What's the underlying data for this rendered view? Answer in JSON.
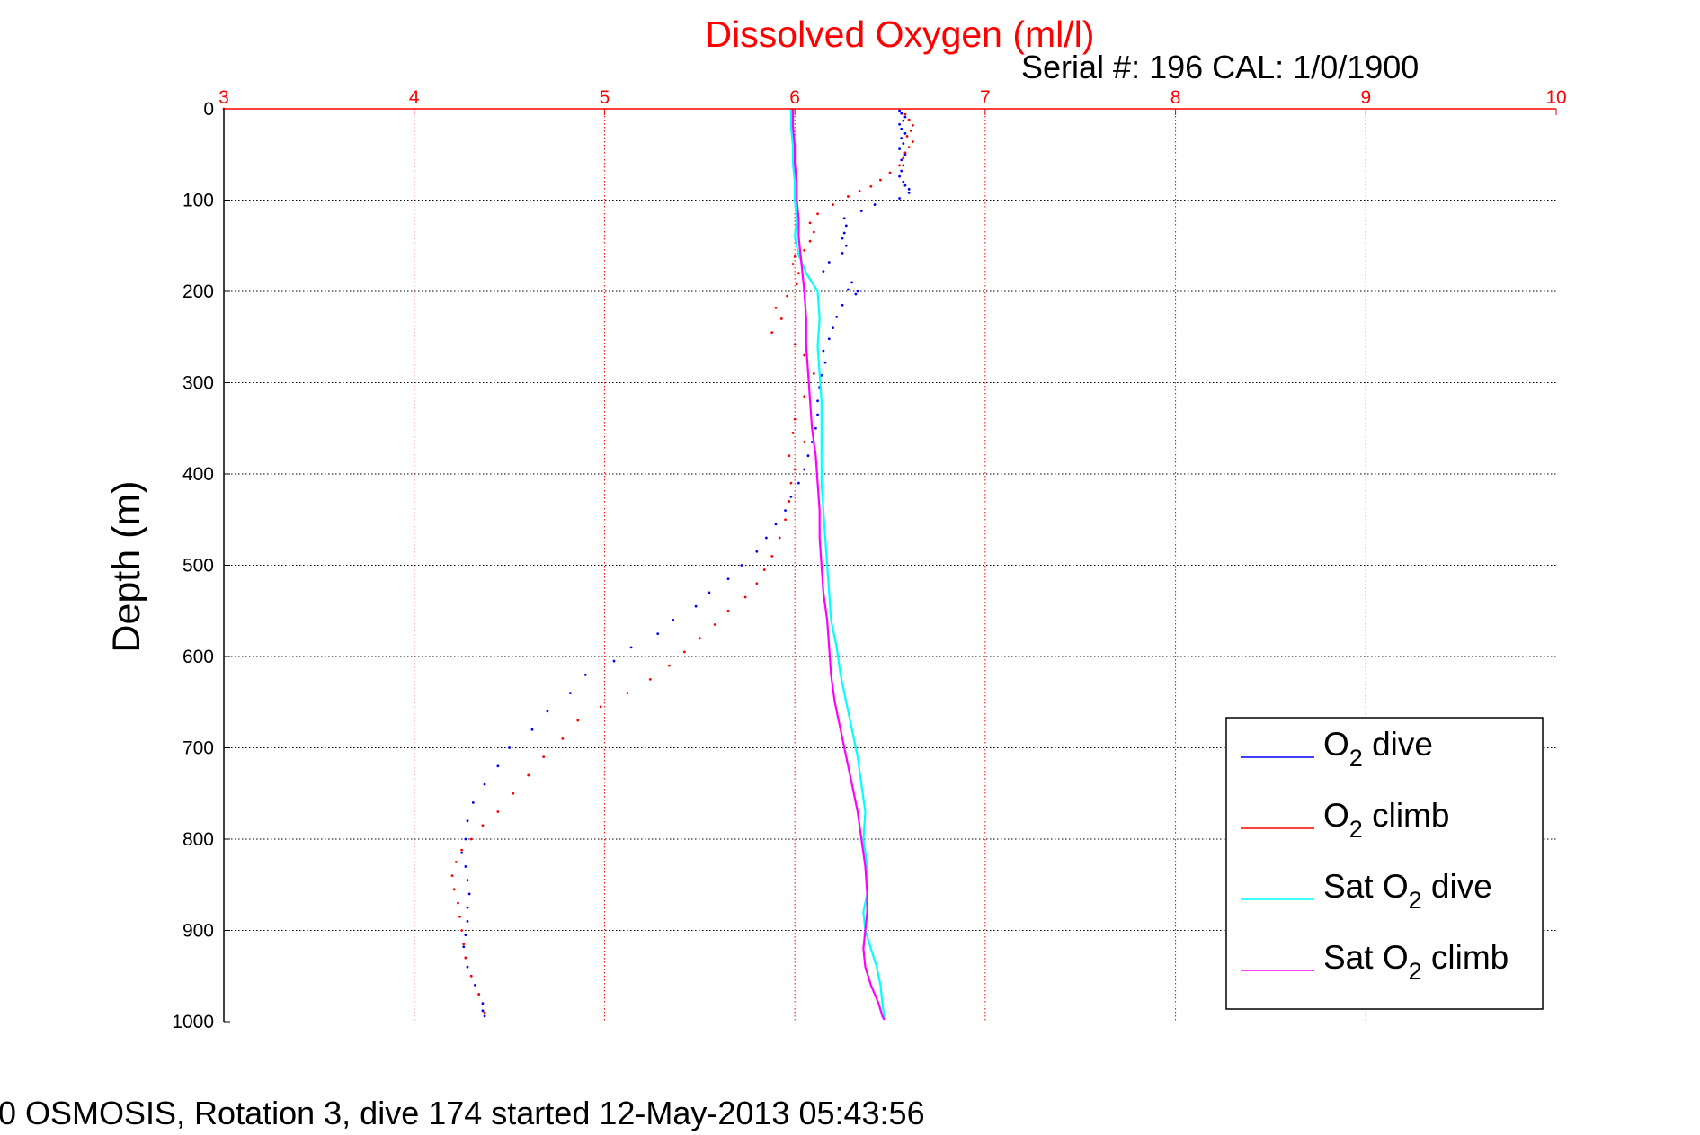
{
  "chart_data": {
    "type": "scatter",
    "title": "Dissolved Oxygen (ml/l)",
    "subtitle": "Serial #: 196  CAL: 1/0/1900",
    "caption": "0 OSMOSIS, Rotation 3, dive 174 started 12-May-2013 05:43:56",
    "xlabel": "",
    "ylabel": "Depth (m)",
    "xlim": [
      3,
      10
    ],
    "ylim": [
      0,
      1000
    ],
    "y_reversed": true,
    "x_axis_position": "top",
    "x_ticks": [
      "3",
      "4",
      "5",
      "6",
      "7",
      "8",
      "9",
      "10"
    ],
    "y_ticks": [
      "0",
      "100",
      "200",
      "300",
      "400",
      "500",
      "600",
      "700",
      "800",
      "900",
      "1000"
    ],
    "grid": true,
    "legend_position": "bottom-right",
    "colors": {
      "title": "#ff0000",
      "x_axis": "#ff0000",
      "grid": "#000000"
    },
    "series": [
      {
        "name": "O2 dive",
        "legend_base": "O",
        "legend_sub": "2",
        "legend_rest": " dive",
        "color": "#0000ff",
        "style": "dots",
        "x": [
          6.55,
          6.56,
          6.58,
          6.57,
          6.55,
          6.56,
          6.58,
          6.56,
          6.57,
          6.55,
          6.58,
          6.56,
          6.57,
          6.56,
          6.55,
          6.57,
          6.58,
          6.6,
          6.6,
          6.55,
          6.42,
          6.35,
          6.26,
          6.27,
          6.26,
          6.25,
          6.27,
          6.25,
          6.18,
          6.15,
          6.3,
          6.28,
          6.33,
          6.32,
          6.25,
          6.22,
          6.2,
          6.18,
          6.15,
          6.16,
          6.14,
          6.13,
          6.12,
          6.12,
          6.11,
          6.09,
          6.07,
          6.05,
          6.02,
          5.98,
          5.95,
          5.9,
          5.85,
          5.8,
          5.72,
          5.65,
          5.55,
          5.48,
          5.36,
          5.28,
          5.14,
          5.05,
          4.9,
          4.82,
          4.7,
          4.62,
          4.5,
          4.44,
          4.37,
          4.31,
          4.28,
          4.27,
          4.25,
          4.27,
          4.28,
          4.29,
          4.28,
          4.28,
          4.27,
          4.26,
          4.27,
          4.28,
          4.3,
          4.32,
          4.34,
          4.36,
          4.36,
          4.37
        ],
        "y": [
          2,
          5,
          9,
          13,
          17,
          22,
          27,
          32,
          38,
          44,
          50,
          56,
          62,
          68,
          74,
          80,
          84,
          88,
          92,
          98,
          105,
          112,
          120,
          128,
          136,
          142,
          150,
          158,
          168,
          178,
          190,
          198,
          200,
          203,
          215,
          228,
          240,
          252,
          265,
          278,
          292,
          305,
          320,
          335,
          350,
          365,
          380,
          395,
          410,
          425,
          440,
          455,
          470,
          485,
          500,
          515,
          530,
          545,
          560,
          575,
          590,
          605,
          620,
          640,
          660,
          680,
          700,
          720,
          740,
          760,
          780,
          800,
          815,
          830,
          845,
          860,
          875,
          890,
          905,
          918,
          930,
          940,
          950,
          960,
          970,
          980,
          988,
          994
        ]
      },
      {
        "name": "O2 climb",
        "legend_base": "O",
        "legend_sub": "2",
        "legend_rest": " climb",
        "color": "#ff0000",
        "style": "dots",
        "x": [
          3.0,
          6.58,
          6.6,
          6.62,
          6.61,
          6.59,
          6.62,
          6.6,
          6.58,
          6.57,
          6.55,
          6.5,
          6.45,
          6.4,
          6.34,
          6.28,
          6.2,
          6.12,
          6.08,
          6.1,
          6.08,
          6.05,
          6.0,
          5.99,
          6.02,
          6.01,
          5.96,
          5.9,
          5.93,
          5.88,
          6.0,
          6.05,
          6.1,
          6.05,
          6.0,
          5.99,
          6.05,
          5.97,
          6.0,
          5.98,
          5.97,
          5.95,
          5.92,
          5.88,
          5.84,
          5.8,
          5.74,
          5.65,
          5.58,
          5.5,
          5.42,
          5.34,
          5.24,
          5.12,
          4.98,
          4.86,
          4.78,
          4.68,
          4.6,
          4.52,
          4.44,
          4.36,
          4.3,
          4.25,
          4.22,
          4.2,
          4.21,
          4.23,
          4.24,
          4.25,
          4.26,
          4.27,
          4.3,
          4.34,
          4.37
        ],
        "y": [
          0,
          6,
          12,
          18,
          24,
          30,
          36,
          42,
          48,
          54,
          62,
          70,
          78,
          85,
          90,
          96,
          105,
          115,
          125,
          135,
          145,
          155,
          162,
          170,
          180,
          192,
          205,
          218,
          230,
          245,
          258,
          270,
          290,
          315,
          340,
          355,
          365,
          380,
          395,
          410,
          430,
          450,
          470,
          490,
          505,
          520,
          535,
          550,
          565,
          580,
          595,
          610,
          625,
          640,
          655,
          670,
          690,
          710,
          730,
          750,
          770,
          785,
          800,
          812,
          825,
          840,
          855,
          870,
          885,
          900,
          915,
          930,
          950,
          970,
          990
        ]
      },
      {
        "name": "Sat O2 dive",
        "legend_base": "Sat O",
        "legend_sub": "2",
        "legend_rest": " dive",
        "color": "#00ffff",
        "style": "line",
        "x": [
          5.98,
          5.98,
          5.99,
          5.99,
          6.0,
          6.0,
          6.01,
          6.0,
          6.02,
          6.06,
          6.12,
          6.13,
          6.12,
          6.13,
          6.14,
          6.14,
          6.14,
          6.14,
          6.15,
          6.16,
          6.17,
          6.18,
          6.19,
          6.22,
          6.24,
          6.27,
          6.3,
          6.33,
          6.35,
          6.37,
          6.36,
          6.38,
          6.38,
          6.36,
          6.37,
          6.4,
          6.43,
          6.45,
          6.46,
          6.47
        ],
        "y": [
          0,
          20,
          40,
          60,
          80,
          100,
          120,
          140,
          160,
          180,
          200,
          230,
          260,
          290,
          320,
          350,
          380,
          410,
          440,
          470,
          500,
          530,
          560,
          590,
          620,
          650,
          680,
          710,
          740,
          770,
          800,
          830,
          860,
          880,
          900,
          920,
          940,
          960,
          980,
          996
        ]
      },
      {
        "name": "Sat O2 climb",
        "legend_base": "Sat O",
        "legend_sub": "2",
        "legend_rest": " climb",
        "color": "#ff00ff",
        "style": "line",
        "x": [
          5.99,
          5.99,
          6.0,
          6.0,
          6.01,
          6.01,
          6.02,
          6.02,
          6.03,
          6.04,
          6.05,
          6.06,
          6.06,
          6.07,
          6.08,
          6.09,
          6.11,
          6.12,
          6.13,
          6.13,
          6.14,
          6.15,
          6.17,
          6.18,
          6.19,
          6.21,
          6.24,
          6.27,
          6.3,
          6.33,
          6.35,
          6.37,
          6.38,
          6.38,
          6.37,
          6.36,
          6.37,
          6.4,
          6.44,
          6.46,
          6.47
        ],
        "y": [
          0,
          20,
          40,
          60,
          80,
          100,
          120,
          140,
          160,
          180,
          200,
          230,
          260,
          290,
          320,
          350,
          380,
          410,
          440,
          470,
          500,
          530,
          560,
          590,
          620,
          650,
          680,
          710,
          740,
          770,
          800,
          830,
          860,
          880,
          900,
          920,
          940,
          960,
          980,
          994,
          998
        ]
      }
    ]
  }
}
